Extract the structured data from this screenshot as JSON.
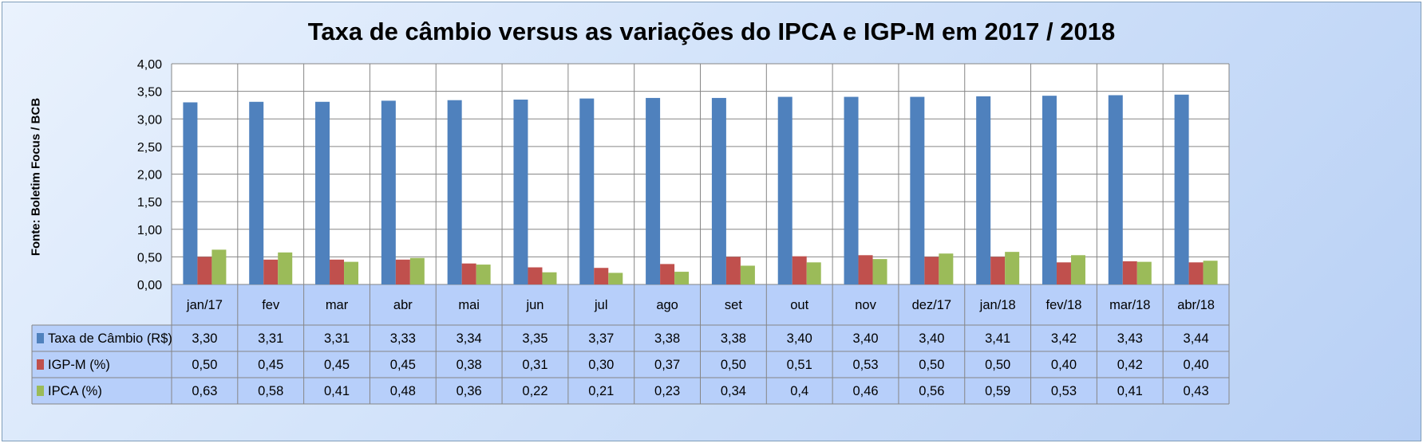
{
  "chart_data": {
    "type": "bar",
    "title": "Taxa de câmbio versus as variações do IPCA e IGP-M em 2017 / 2018",
    "ylabel": "Fonte: Boletim Focus / BCB",
    "ylim": [
      0,
      4
    ],
    "yticks": [
      "0,00",
      "0,50",
      "1,00",
      "1,50",
      "2,00",
      "2,50",
      "3,00",
      "3,50",
      "4,00"
    ],
    "grid": true,
    "legend": "data-table",
    "categories": [
      "jan/17",
      "fev",
      "mar",
      "abr",
      "mai",
      "jun",
      "jul",
      "ago",
      "set",
      "out",
      "nov",
      "dez/17",
      "jan/18",
      "fev/18",
      "mar/18",
      "abr/18"
    ],
    "series": [
      {
        "name": "Taxa de Câmbio (R$)",
        "color": "#4f81bd",
        "values": [
          3.3,
          3.31,
          3.31,
          3.33,
          3.34,
          3.35,
          3.37,
          3.38,
          3.38,
          3.4,
          3.4,
          3.4,
          3.41,
          3.42,
          3.43,
          3.44
        ],
        "labels": [
          "3,30",
          "3,31",
          "3,31",
          "3,33",
          "3,34",
          "3,35",
          "3,37",
          "3,38",
          "3,38",
          "3,40",
          "3,40",
          "3,40",
          "3,41",
          "3,42",
          "3,43",
          "3,44"
        ]
      },
      {
        "name": "IGP-M (%)",
        "color": "#c0504d",
        "values": [
          0.5,
          0.45,
          0.45,
          0.45,
          0.38,
          0.31,
          0.3,
          0.37,
          0.5,
          0.51,
          0.53,
          0.5,
          0.5,
          0.4,
          0.42,
          0.4
        ],
        "labels": [
          "0,50",
          "0,45",
          "0,45",
          "0,45",
          "0,38",
          "0,31",
          "0,30",
          "0,37",
          "0,50",
          "0,51",
          "0,53",
          "0,50",
          "0,50",
          "0,40",
          "0,42",
          "0,40"
        ]
      },
      {
        "name": "IPCA (%)",
        "color": "#9bbb59",
        "values": [
          0.63,
          0.58,
          0.41,
          0.48,
          0.36,
          0.22,
          0.21,
          0.23,
          0.34,
          0.4,
          0.46,
          0.56,
          0.59,
          0.53,
          0.41,
          0.43
        ],
        "labels": [
          "0,63",
          "0,58",
          "0,41",
          "0,48",
          "0,36",
          "0,22",
          "0,21",
          "0,23",
          "0,34",
          "0,4",
          "0,46",
          "0,56",
          "0,59",
          "0,53",
          "0,41",
          "0,43"
        ]
      }
    ]
  }
}
